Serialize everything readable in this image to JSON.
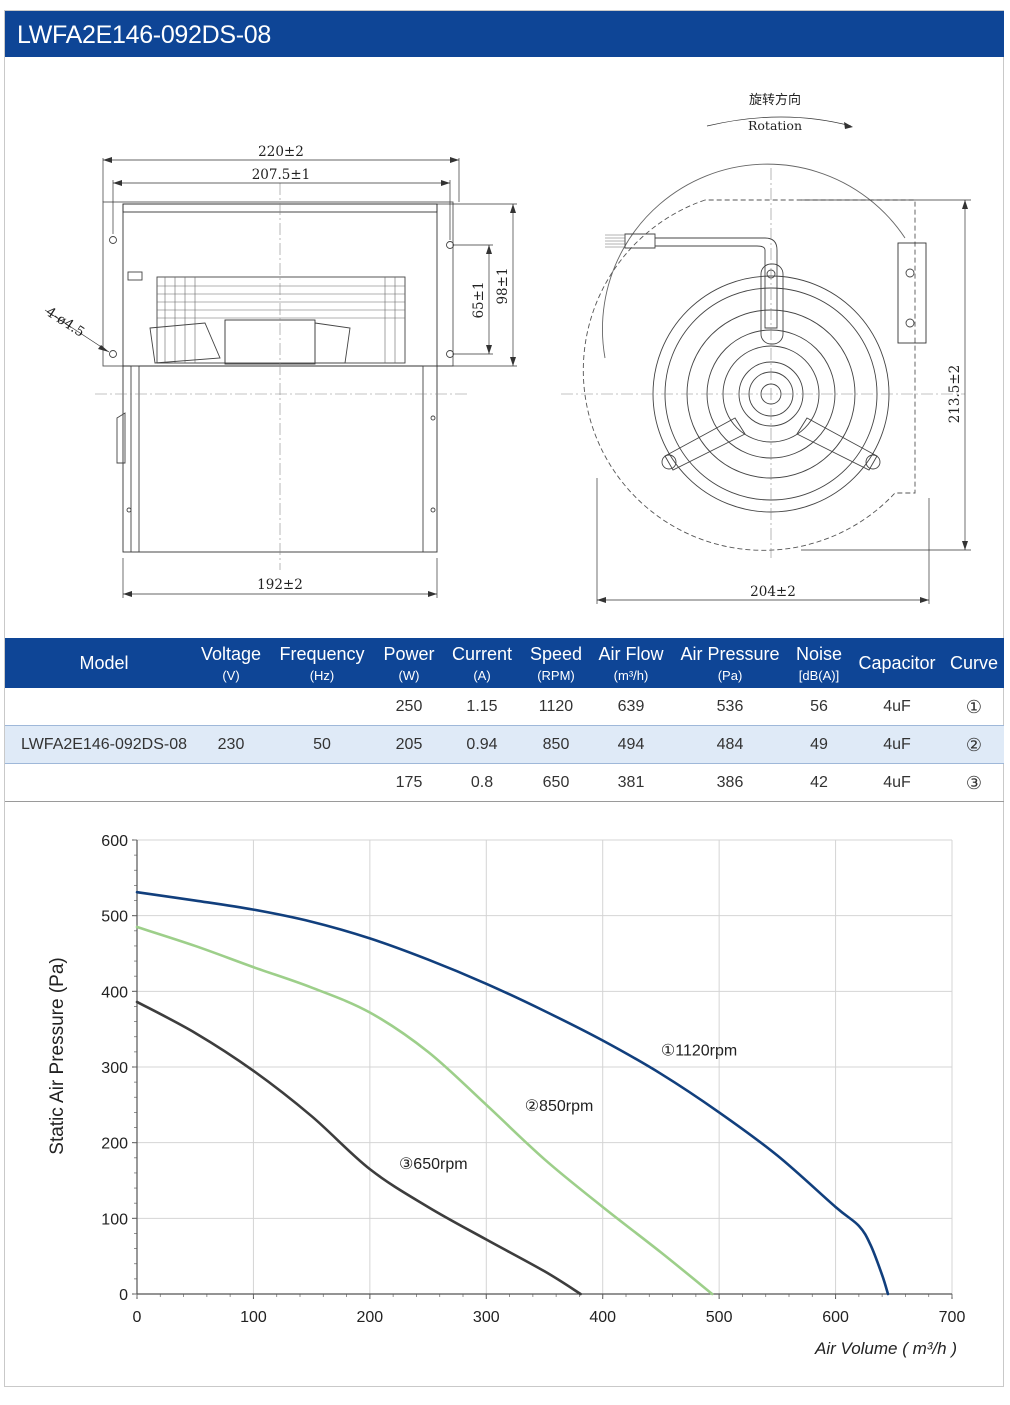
{
  "header": {
    "title": "LWFA2E146-092DS-08"
  },
  "drawing": {
    "rotation_cn": "旋转方向",
    "rotation_en": "Rotation",
    "dim_220": "220±2",
    "dim_207": "207.5±1",
    "dim_holes": "4-ø4.5",
    "dim_65": "65±1",
    "dim_98": "98±1",
    "dim_192": "192±2",
    "dim_204": "204±2",
    "dim_213": "213.5±2"
  },
  "table": {
    "headers": [
      {
        "title": "Model",
        "unit": ""
      },
      {
        "title": "Voltage",
        "unit": "(V)"
      },
      {
        "title": "Frequency",
        "unit": "(Hz)"
      },
      {
        "title": "Power",
        "unit": "(W)"
      },
      {
        "title": "Current",
        "unit": "(A)"
      },
      {
        "title": "Speed",
        "unit": "(RPM)"
      },
      {
        "title": "Air Flow",
        "unit": "(m³/h)"
      },
      {
        "title": "Air Pressure",
        "unit": "(Pa)"
      },
      {
        "title": "Noise",
        "unit": "[dB(A)]"
      },
      {
        "title": "Capacitor",
        "unit": ""
      },
      {
        "title": "Curve",
        "unit": ""
      }
    ],
    "model": "LWFA2E146-092DS-08",
    "voltage": "230",
    "frequency": "50",
    "rows": [
      {
        "power": "250",
        "current": "1.15",
        "speed": "1120",
        "airflow": "639",
        "pressure": "536",
        "noise": "56",
        "capacitor": "4uF",
        "curve": "①"
      },
      {
        "power": "205",
        "current": "0.94",
        "speed": "850",
        "airflow": "494",
        "pressure": "484",
        "noise": "49",
        "capacitor": "4uF",
        "curve": "②"
      },
      {
        "power": "175",
        "current": "0.8",
        "speed": "650",
        "airflow": "381",
        "pressure": "386",
        "noise": "42",
        "capacitor": "4uF",
        "curve": "③"
      }
    ]
  },
  "chart_data": {
    "type": "line",
    "title": "",
    "xlabel": "Air Volume ( m³/h )",
    "ylabel": "Static Air Pressure  (Pa)",
    "xlim": [
      0,
      700
    ],
    "ylim": [
      0,
      600
    ],
    "xticks": [
      "0",
      "100",
      "200",
      "300",
      "400",
      "500",
      "600",
      "700"
    ],
    "yticks": [
      "0",
      "100",
      "200",
      "300",
      "400",
      "500",
      "600"
    ],
    "grid": true,
    "series": [
      {
        "name": "①1120rpm",
        "color": "#113f7d",
        "x": [
          0,
          50,
          100,
          150,
          200,
          250,
          300,
          350,
          400,
          450,
          500,
          550,
          600,
          620,
          630,
          640,
          645
        ],
        "y": [
          531,
          520,
          508,
          492,
          470,
          442,
          410,
          374,
          335,
          291,
          240,
          183,
          115,
          90,
          65,
          25,
          0
        ]
      },
      {
        "name": "②850rpm",
        "color": "#9dcf8a",
        "x": [
          0,
          50,
          100,
          150,
          200,
          250,
          300,
          350,
          400,
          450,
          494
        ],
        "y": [
          485,
          460,
          432,
          405,
          372,
          320,
          250,
          178,
          115,
          55,
          0
        ]
      },
      {
        "name": "③650rpm",
        "color": "#3d3d3d",
        "x": [
          0,
          50,
          100,
          150,
          200,
          250,
          300,
          350,
          381
        ],
        "y": [
          386,
          345,
          295,
          235,
          165,
          115,
          72,
          30,
          0
        ]
      }
    ],
    "labels": [
      {
        "text": "①1120rpm",
        "x": 450,
        "y": 315
      },
      {
        "text": "②850rpm",
        "x": 333,
        "y": 242
      },
      {
        "text": "③650rpm",
        "x": 225,
        "y": 165
      }
    ]
  }
}
